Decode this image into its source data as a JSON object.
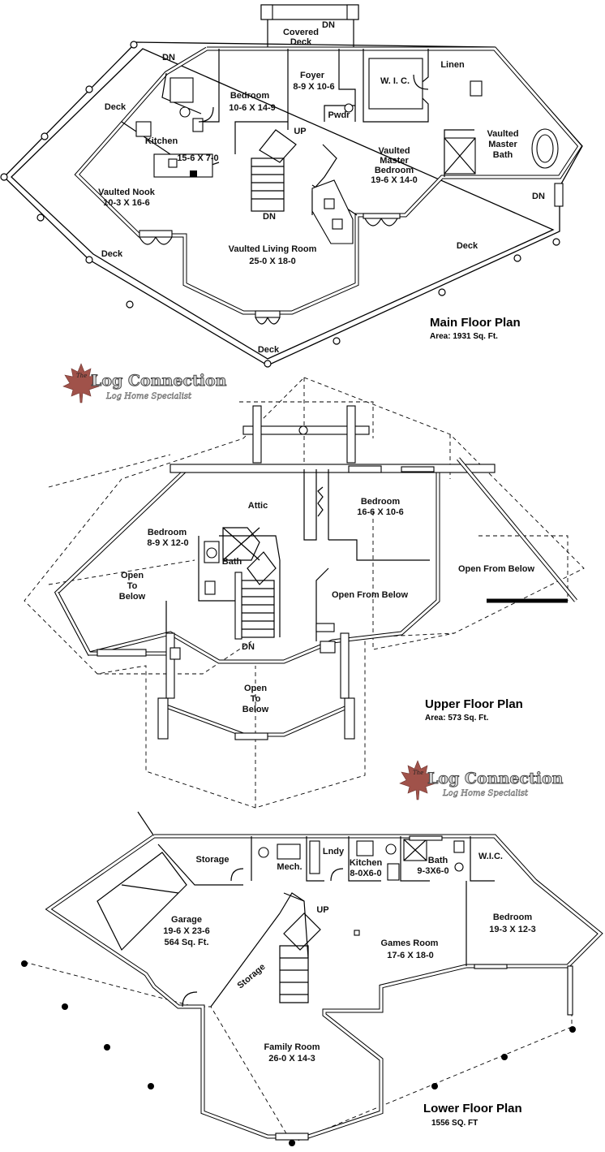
{
  "brand": {
    "the": "The",
    "name": "Log Connection",
    "tagline": "Log Home Specialist",
    "leaf_color": "#a0524a"
  },
  "main_floor": {
    "title": "Main Floor Plan",
    "area": "Area: 1931 Sq. Ft.",
    "rooms": {
      "covered_deck_1": "Covered",
      "covered_deck_2": "Deck",
      "dn_top": "DN",
      "dn_left": "DN",
      "deck_left": "Deck",
      "bedroom_name": "Bedroom",
      "bedroom_size": "10-6 X 14-9",
      "foyer_name": "Foyer",
      "foyer_size": "8-9 X 10-6",
      "wic": "W. I. C.",
      "linen": "Linen",
      "pwdr": "Pwdr",
      "up": "UP",
      "kitchen_name": "Kitchen",
      "kitchen_size": "15-6 X 7-0",
      "vaulted_master_1": "Vaulted",
      "vaulted_master_2": "Master",
      "vaulted_master_3": "Bedroom",
      "master_size": "19-6 X 14-0",
      "vaulted_bath_1": "Vaulted",
      "vaulted_bath_2": "Master",
      "vaulted_bath_3": "Bath",
      "nook_name": "Vaulted Nook",
      "nook_size": "10-3 X 16-6",
      "dn_stair": "DN",
      "dn_right": "DN",
      "deck_lower_left": "Deck",
      "living_name": "Vaulted Living Room",
      "living_size": "25-0 X 18-0",
      "deck_right": "Deck",
      "deck_bottom": "Deck"
    }
  },
  "upper_floor": {
    "title": "Upper Floor Plan",
    "area": "Area: 573 Sq. Ft.",
    "rooms": {
      "attic": "Attic",
      "bedroom2_name": "Bedroom",
      "bedroom2_size": "16-6 X 10-6",
      "bedroom1_name": "Bedroom",
      "bedroom1_size": "8-9 X 12-0",
      "bath": "Bath",
      "open_left_1": "Open",
      "open_left_2": "To",
      "open_left_3": "Below",
      "open_center": "Open From Below",
      "open_right": "Open From Below",
      "dn": "DN",
      "open_bottom_1": "Open",
      "open_bottom_2": "To",
      "open_bottom_3": "Below"
    }
  },
  "lower_floor": {
    "title": "Lower Floor Plan",
    "area": "1556 SQ. FT",
    "rooms": {
      "storage_top": "Storage",
      "mech": "Mech.",
      "lndy": "Lndy",
      "kitchen_name": "Kitchen",
      "kitchen_size": "8-0X6-0",
      "bath_name": "Bath",
      "bath_size": "9-3X6-0",
      "wic": "W.I.C.",
      "up": "UP",
      "garage_name": "Garage",
      "garage_size": "19-6 X 23-6",
      "garage_area": "564 Sq. Ft.",
      "games_name": "Games Room",
      "games_size": "17-6 X 18-0",
      "bedroom_name": "Bedroom",
      "bedroom_size": "19-3 X 12-3",
      "storage_stair": "Storage",
      "family_name": "Family Room",
      "family_size": "26-0 X 14-3"
    }
  }
}
